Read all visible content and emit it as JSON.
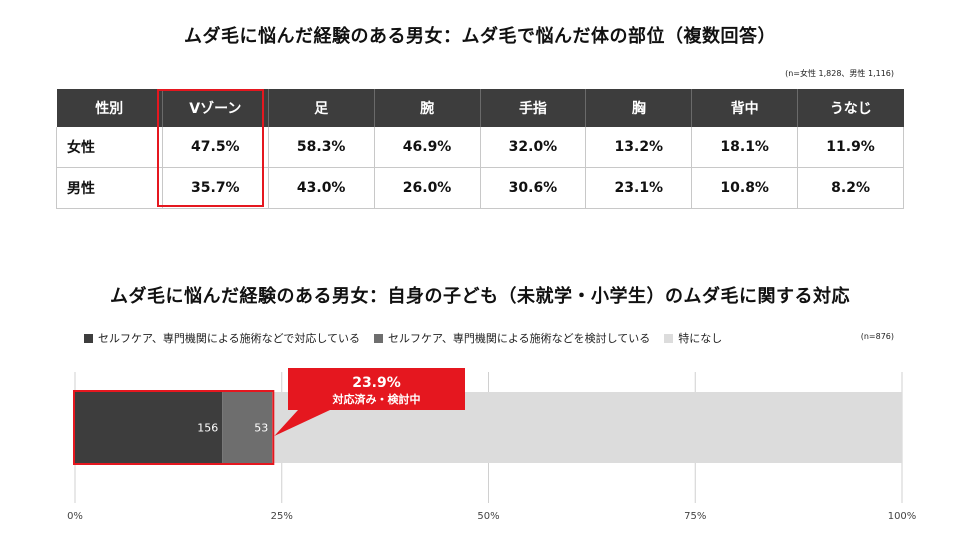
{
  "table_section": {
    "title": "ムダ毛に悩んだ経験のある男女：ムダ毛で悩んだ体の部位（複数回答）",
    "note": "(n=女性 1,828、男性 1,116)",
    "headers": [
      "性別",
      "Vゾーン",
      "足",
      "腕",
      "手指",
      "胸",
      "背中",
      "うなじ"
    ],
    "rows": [
      {
        "label": "女性",
        "values": [
          "47.5%",
          "58.3%",
          "46.9%",
          "32.0%",
          "13.2%",
          "18.1%",
          "11.9%"
        ]
      },
      {
        "label": "男性",
        "values": [
          "35.7%",
          "43.0%",
          "26.0%",
          "30.6%",
          "23.1%",
          "10.8%",
          "8.2%"
        ]
      }
    ]
  },
  "chart_section": {
    "title": "ムダ毛に悩んだ経験のある男女：自身の子ども（未就学・小学生）のムダ毛に関する対応",
    "note": "(n=876)",
    "callout": {
      "value": "23.9%",
      "label": "対応済み・検討中"
    }
  },
  "chart_data": {
    "type": "bar",
    "orientation": "horizontal",
    "stacked": true,
    "total": 876,
    "series": [
      {
        "name": "セルフケア、専門機関による施術などで対応している",
        "value": 156,
        "color": "#3d3d3d",
        "label": "156"
      },
      {
        "name": "セルフケア、専門機関による施術などを検討している",
        "value": 53,
        "color": "#6e6e6e",
        "label": "53"
      },
      {
        "name": "特になし",
        "value": 667,
        "color": "#dcdcdc",
        "label": ""
      }
    ],
    "xticks": [
      "0%",
      "25%",
      "50%",
      "75%",
      "100%"
    ],
    "xlim": [
      0,
      100
    ],
    "grid": true,
    "legend": "top-left",
    "colors": {
      "highlight": "#e5171f"
    }
  }
}
